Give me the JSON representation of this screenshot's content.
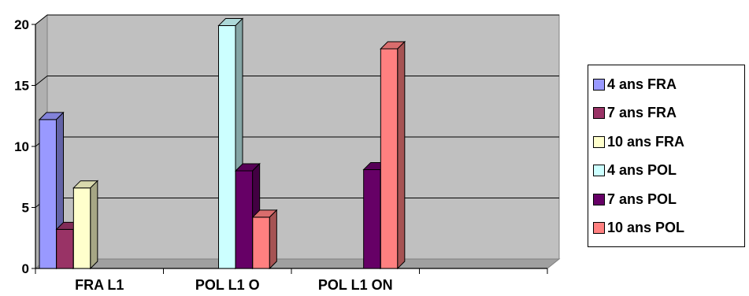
{
  "chart_data": {
    "type": "bar",
    "variant": "3d-clustered-column",
    "categories": [
      "FRA L1",
      "POL L1 O",
      "POL L1 ON",
      ""
    ],
    "ylim": [
      0,
      20
    ],
    "yticks": [
      "0",
      "5",
      "10",
      "15",
      "20"
    ],
    "grid": true,
    "legend_position": "right",
    "series": [
      {
        "name": "4 ans FRA",
        "color": "#9999ff",
        "values": [
          12.2,
          null,
          null,
          null
        ]
      },
      {
        "name": "7 ans FRA",
        "color": "#993366",
        "values": [
          3.2,
          null,
          null,
          null
        ]
      },
      {
        "name": "10 ans FRA",
        "color": "#ffffcc",
        "values": [
          6.6,
          null,
          null,
          null
        ]
      },
      {
        "name": "4 ans POL",
        "color": "#ccffff",
        "values": [
          null,
          19.9,
          null,
          null
        ]
      },
      {
        "name": "7 ans POL",
        "color": "#660066",
        "values": [
          null,
          8.0,
          8.1,
          null
        ]
      },
      {
        "name": "10 ans POL",
        "color": "#ff8080",
        "values": [
          null,
          4.2,
          18.0,
          null
        ]
      }
    ],
    "plot_background": "#c0c0c0"
  }
}
